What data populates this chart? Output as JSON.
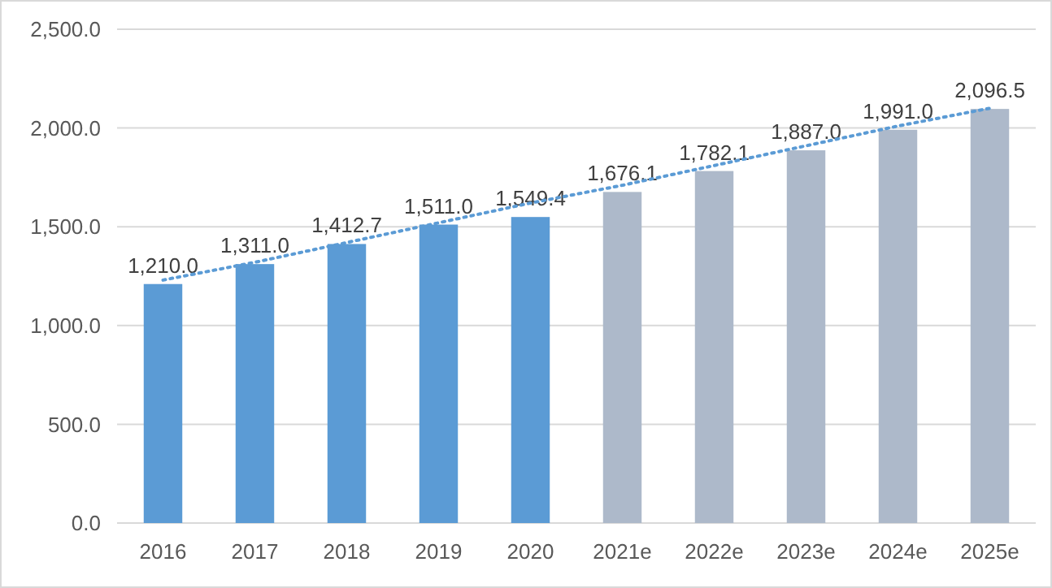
{
  "chart_data": {
    "type": "bar",
    "categories": [
      "2016",
      "2017",
      "2018",
      "2019",
      "2020",
      "2021e",
      "2022e",
      "2023e",
      "2024e",
      "2025e"
    ],
    "series": [
      {
        "values": [
          1210.0,
          1311.0,
          1412.7,
          1511.0,
          1549.4,
          1676.1,
          1782.1,
          1887.0,
          1991.0,
          2096.5
        ],
        "colors": [
          "#5b9bd5",
          "#5b9bd5",
          "#5b9bd5",
          "#5b9bd5",
          "#5b9bd5",
          "#adb9ca",
          "#adb9ca",
          "#adb9ca",
          "#adb9ca",
          "#adb9ca"
        ],
        "value_labels": [
          "1,210.0",
          "1,311.0",
          "1,412.7",
          "1,511.0",
          "1,549.4",
          "1,676.1",
          "1,782.1",
          "1,887.0",
          "1,991.0",
          "2,096.5"
        ]
      },
      {
        "type": "line",
        "values": [
          1230,
          1320,
          1420,
          1520,
          1620,
          1710,
          1810,
          1910,
          2010,
          2100
        ],
        "color": "#5b9bd5",
        "line_style": "dotted"
      }
    ],
    "ylim": [
      0,
      2500
    ],
    "yticks": [
      {
        "value": 0,
        "label": "0.0"
      },
      {
        "value": 500,
        "label": "500.0"
      },
      {
        "value": 1000,
        "label": "1,000.0"
      },
      {
        "value": 1500,
        "label": "1,500.0"
      },
      {
        "value": 2000,
        "label": "2,000.0"
      },
      {
        "value": 2500,
        "label": "2,500.0"
      }
    ],
    "grid": "y"
  }
}
